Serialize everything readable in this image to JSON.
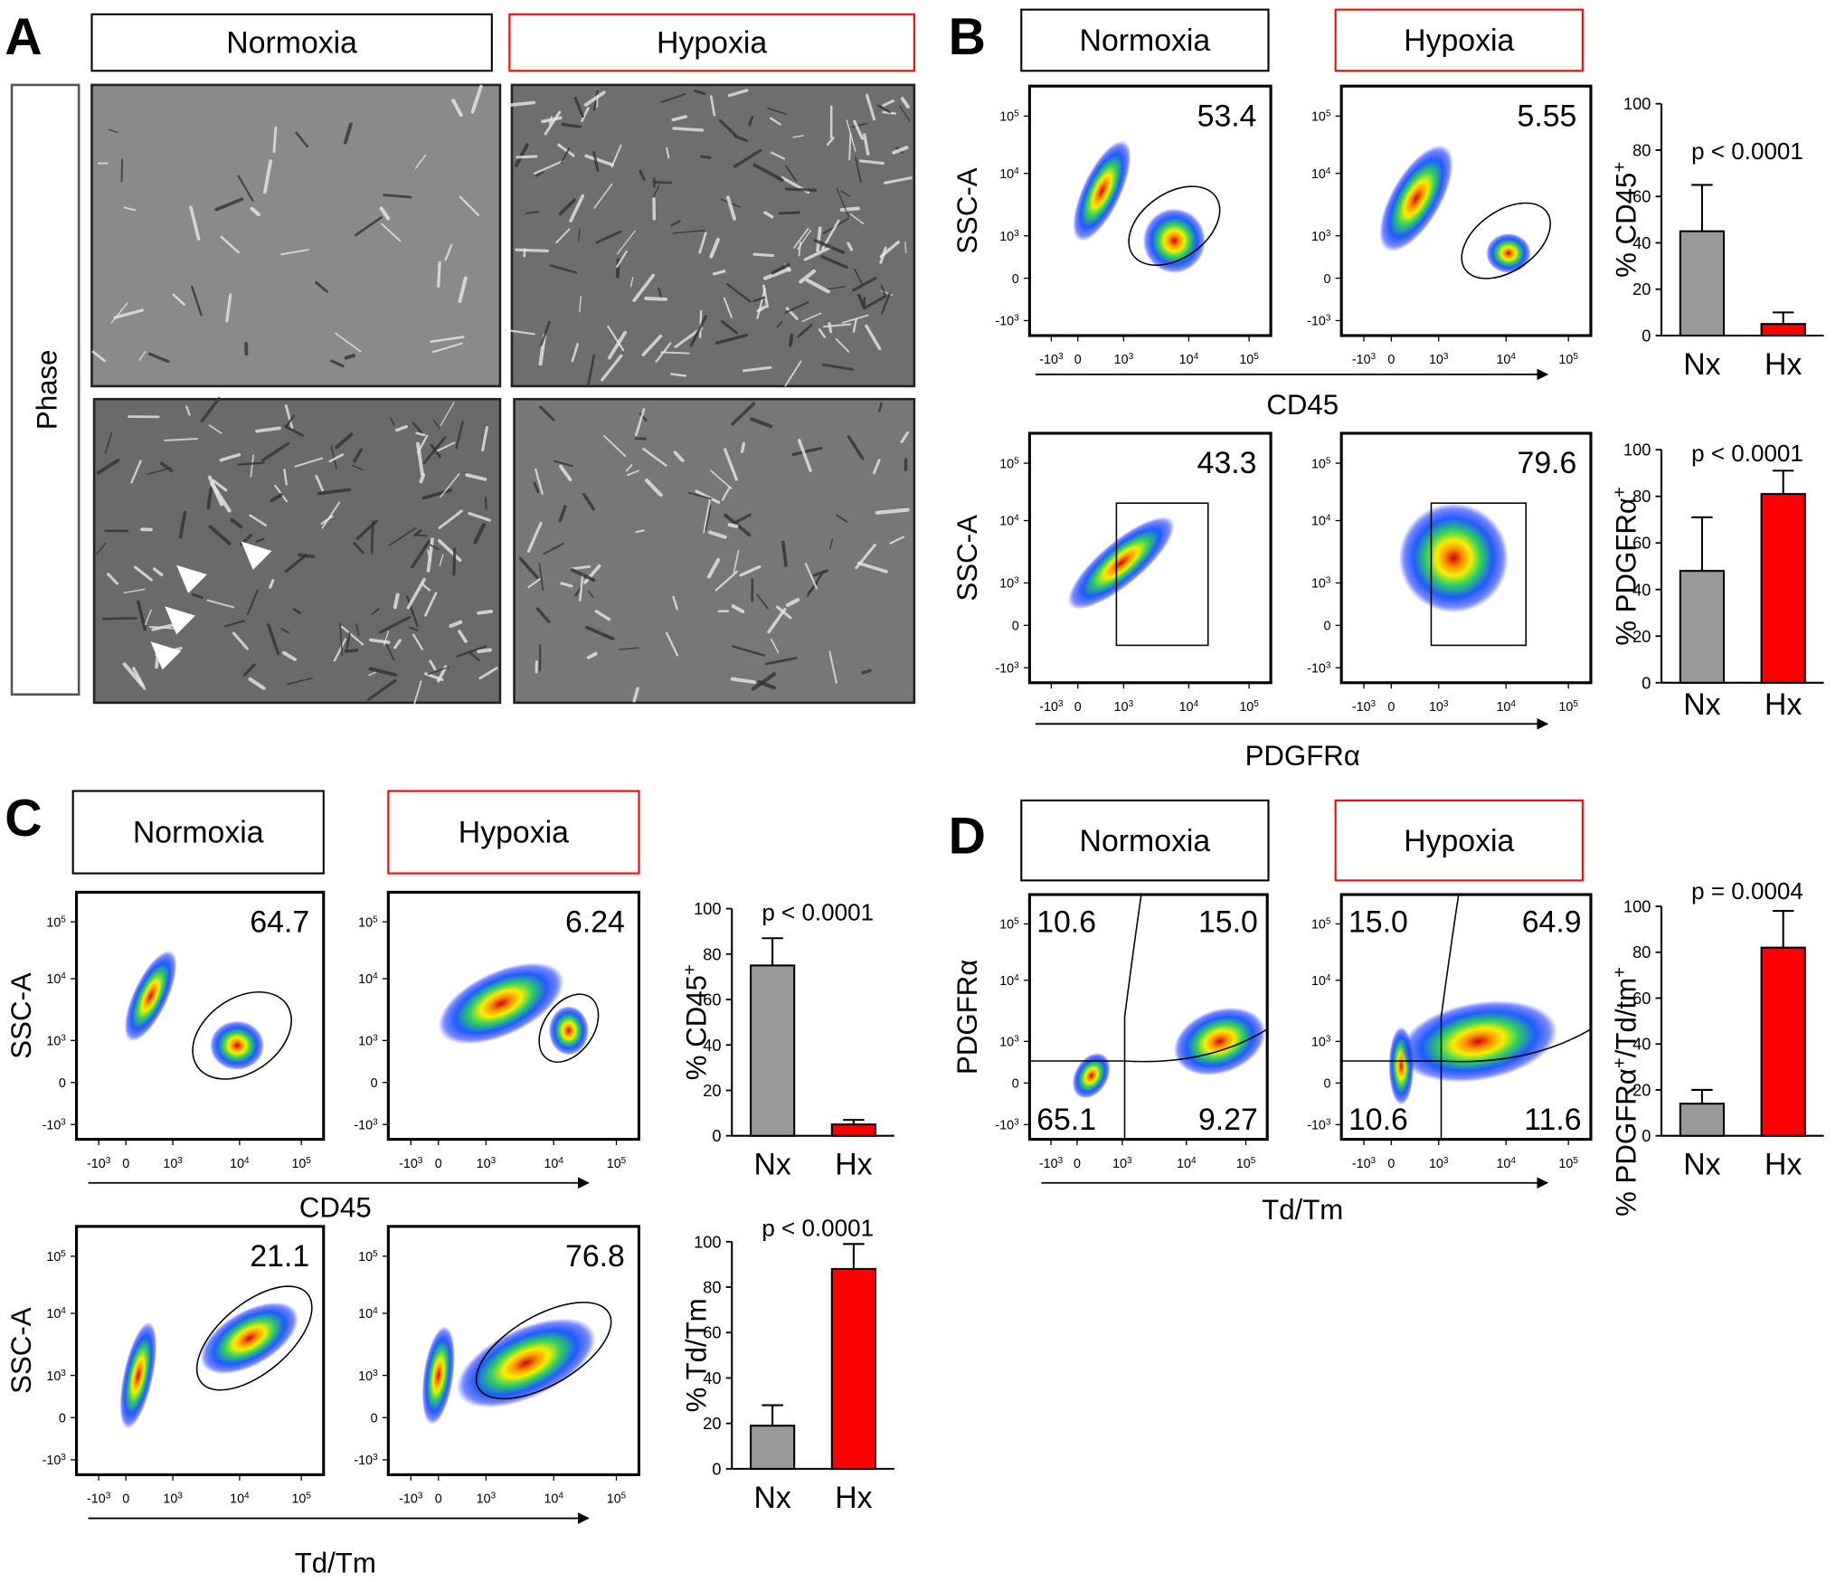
{
  "panels": [
    {
      "letter": "A",
      "conditions": [
        "Normoxia",
        "Hypoxia"
      ],
      "row_label": "Phase"
    },
    {
      "letter": "B",
      "conditions": [
        "Normoxia",
        "Hypoxia"
      ],
      "flow_rows": [
        {
          "y_label": "SSC-A",
          "x_label": "CD45",
          "gates": [
            [
              "53.4"
            ],
            [
              "5.55"
            ]
          ]
        },
        {
          "y_label": "SSC-A",
          "x_label": "PDGFRα",
          "gates": [
            [
              "43.3"
            ],
            [
              "79.6"
            ]
          ]
        }
      ]
    },
    {
      "letter": "C",
      "conditions": [
        "Normoxia",
        "Hypoxia"
      ],
      "flow_rows": [
        {
          "y_label": "SSC-A",
          "x_label": "CD45",
          "gates": [
            [
              "64.7"
            ],
            [
              "6.24"
            ]
          ]
        },
        {
          "y_label": "SSC-A",
          "x_label": "Td/Tm",
          "gates": [
            [
              "21.1"
            ],
            [
              "76.8"
            ]
          ]
        }
      ]
    },
    {
      "letter": "D",
      "conditions": [
        "Normoxia",
        "Hypoxia"
      ],
      "flow_rows": [
        {
          "y_label": "PDGFRα",
          "x_label": "Td/Tm",
          "gates": [
            [
              "10.6",
              "15.0",
              "65.1",
              "9.27"
            ],
            [
              "15.0",
              "64.9",
              "10.6",
              "11.6"
            ]
          ]
        }
      ]
    }
  ],
  "flow_axis_ticks": [
    {
      "base": "-10",
      "exp": "3"
    },
    {
      "base": "0"
    },
    {
      "base": "10",
      "exp": "3"
    },
    {
      "base": "10",
      "exp": "4"
    },
    {
      "base": "10",
      "exp": "5"
    }
  ],
  "chart_data": [
    {
      "type": "bar",
      "annotation": "p < 0.0001",
      "y_label": [
        {
          "text": "% CD45"
        },
        {
          "sup": "+"
        }
      ],
      "categories": [
        "Nx",
        "Hx"
      ],
      "values": [
        45,
        5
      ],
      "errors": [
        20,
        5
      ],
      "colors": [
        "#999999",
        "#ff0000"
      ],
      "category_colors": [
        "#000000",
        "#ff0000"
      ],
      "ylim": [
        0,
        100
      ],
      "yticks": [
        0,
        20,
        40,
        60,
        80,
        100
      ]
    },
    {
      "type": "bar",
      "annotation": "p < 0.0001",
      "y_label": [
        {
          "text": "% PDGFRα"
        },
        {
          "sup": "+"
        }
      ],
      "categories": [
        "Nx",
        "Hx"
      ],
      "values": [
        48,
        81
      ],
      "errors": [
        23,
        10
      ],
      "colors": [
        "#999999",
        "#ff0000"
      ],
      "category_colors": [
        "#000000",
        "#ff0000"
      ],
      "ylim": [
        0,
        100
      ],
      "yticks": [
        0,
        20,
        40,
        60,
        80,
        100
      ]
    },
    {
      "type": "bar",
      "annotation": "p < 0.0001",
      "y_label": [
        {
          "text": "% CD45"
        },
        {
          "sup": "+"
        }
      ],
      "categories": [
        "Nx",
        "Hx"
      ],
      "values": [
        75,
        5
      ],
      "errors": [
        12,
        2
      ],
      "colors": [
        "#999999",
        "#ff0000"
      ],
      "category_colors": [
        "#000000",
        "#ff0000"
      ],
      "ylim": [
        0,
        100
      ],
      "yticks": [
        0,
        20,
        40,
        60,
        80,
        100
      ]
    },
    {
      "type": "bar",
      "annotation": "p < 0.0001",
      "y_label": [
        {
          "text": "% Td/Tm"
        }
      ],
      "categories": [
        "Nx",
        "Hx"
      ],
      "values": [
        19,
        88
      ],
      "errors": [
        9,
        11
      ],
      "colors": [
        "#999999",
        "#ff0000"
      ],
      "category_colors": [
        "#000000",
        "#ff0000"
      ],
      "ylim": [
        0,
        100
      ],
      "yticks": [
        0,
        20,
        40,
        60,
        80,
        100
      ]
    },
    {
      "type": "bar",
      "annotation": "p = 0.0004",
      "y_label": [
        {
          "text": "% PDGFRα"
        },
        {
          "sup": "+"
        },
        {
          "text": "/Td/tm"
        },
        {
          "sup": "+"
        }
      ],
      "categories": [
        "Nx",
        "Hx"
      ],
      "values": [
        14,
        82
      ],
      "errors": [
        6,
        16
      ],
      "colors": [
        "#999999",
        "#ff0000"
      ],
      "category_colors": [
        "#000000",
        "#ff0000"
      ],
      "ylim": [
        0,
        100
      ],
      "yticks": [
        0,
        20,
        40,
        60,
        80,
        100
      ]
    }
  ]
}
